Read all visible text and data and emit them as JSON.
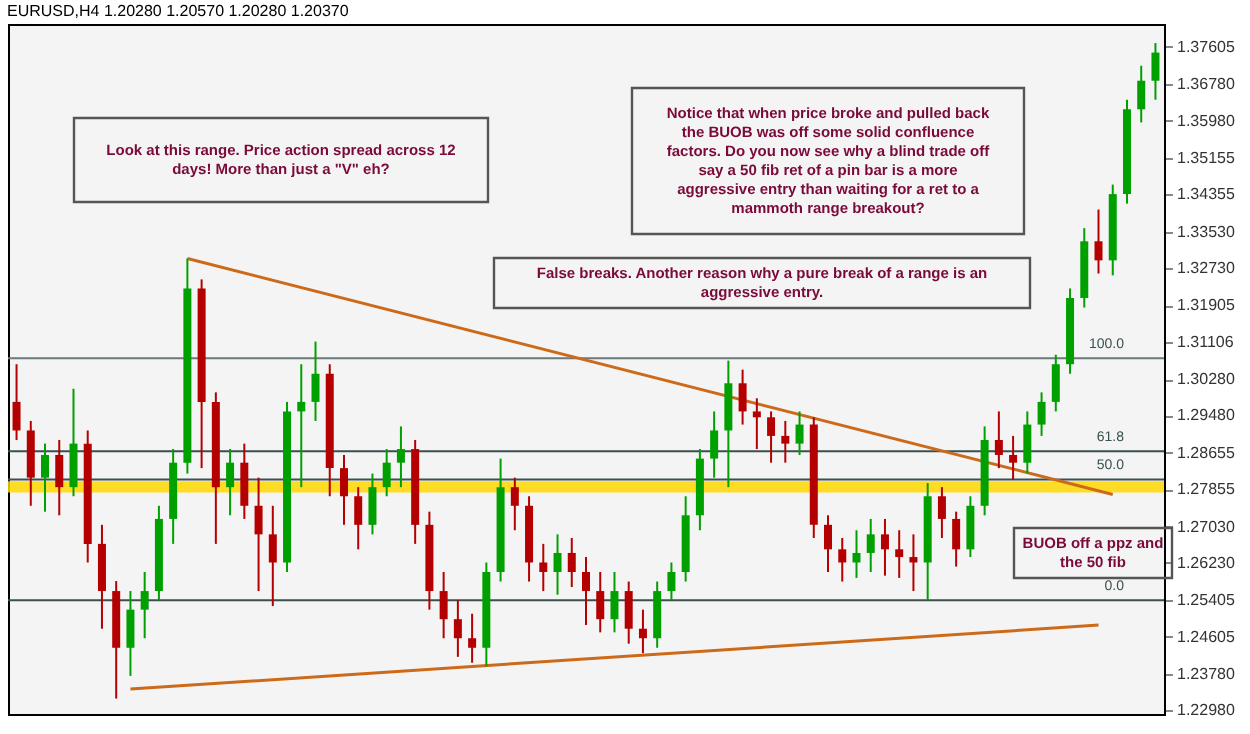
{
  "chart_data": {
    "type": "candlestick",
    "title": "EURUSD,H4  1.20280 1.20570 1.20280 1.20370",
    "categories": [
      null,
      null,
      null,
      null,
      null,
      null,
      null,
      null,
      null,
      null,
      null,
      null,
      null,
      null,
      null,
      null,
      null,
      null,
      null,
      null,
      null,
      null,
      null,
      null,
      null,
      null,
      null,
      null,
      null,
      null,
      null,
      null,
      null,
      null,
      null,
      null,
      null,
      null,
      null,
      null,
      null,
      null,
      null,
      null,
      null,
      null,
      null,
      null,
      null,
      null,
      null,
      null,
      null,
      null,
      null,
      null,
      null,
      null,
      null,
      null,
      null,
      null,
      null,
      null,
      null,
      null,
      null,
      null,
      null,
      null,
      null,
      null,
      null,
      null,
      null,
      null,
      null,
      null,
      null,
      null,
      null
    ],
    "ohlc": [
      [
        1.2978,
        1.3061,
        1.2894,
        1.2915
      ],
      [
        1.2915,
        1.2936,
        1.2749,
        1.2811
      ],
      [
        1.2811,
        1.2886,
        1.2736,
        1.2861
      ],
      [
        1.2861,
        1.2894,
        1.2728,
        1.279
      ],
      [
        1.279,
        1.3007,
        1.277,
        1.2886
      ],
      [
        1.2886,
        1.2915,
        1.2624,
        1.2665
      ],
      [
        1.2665,
        1.2707,
        1.2478,
        1.2561
      ],
      [
        1.2561,
        1.2583,
        1.2324,
        1.2436
      ],
      [
        1.2436,
        1.2561,
        1.2374,
        1.252
      ],
      [
        1.252,
        1.2603,
        1.2457,
        1.2561
      ],
      [
        1.2561,
        1.2749,
        1.2541,
        1.272
      ],
      [
        1.272,
        1.2874,
        1.2665,
        1.2844
      ],
      [
        1.2844,
        1.3294,
        1.282,
        1.3228
      ],
      [
        1.3228,
        1.3248,
        1.2832,
        1.2978
      ],
      [
        1.2978,
        1.2999,
        1.2665,
        1.279
      ],
      [
        1.279,
        1.2874,
        1.2728,
        1.2844
      ],
      [
        1.2844,
        1.2886,
        1.272,
        1.2749
      ],
      [
        1.2749,
        1.2811,
        1.2561,
        1.2686
      ],
      [
        1.2686,
        1.2749,
        1.2528,
        1.2624
      ],
      [
        1.2624,
        1.2978,
        1.2603,
        1.2957
      ],
      [
        1.2957,
        1.3061,
        1.279,
        1.2978
      ],
      [
        1.2978,
        1.3111,
        1.2936,
        1.304
      ],
      [
        1.304,
        1.3061,
        1.277,
        1.2832
      ],
      [
        1.2832,
        1.2861,
        1.2707,
        1.277
      ],
      [
        1.277,
        1.279,
        1.2653,
        1.2707
      ],
      [
        1.2707,
        1.282,
        1.2686,
        1.279
      ],
      [
        1.279,
        1.2874,
        1.277,
        1.2844
      ],
      [
        1.2844,
        1.2924,
        1.279,
        1.2874
      ],
      [
        1.2874,
        1.2894,
        1.2665,
        1.2707
      ],
      [
        1.2707,
        1.2736,
        1.252,
        1.2561
      ],
      [
        1.2561,
        1.2603,
        1.2457,
        1.2499
      ],
      [
        1.2499,
        1.2541,
        1.2416,
        1.2457
      ],
      [
        1.2457,
        1.2511,
        1.2403,
        1.2436
      ],
      [
        1.2436,
        1.2624,
        1.2395,
        1.2603
      ],
      [
        1.2603,
        1.2853,
        1.2582,
        1.279
      ],
      [
        1.279,
        1.2811,
        1.2695,
        1.2749
      ],
      [
        1.2749,
        1.277,
        1.2582,
        1.2624
      ],
      [
        1.2624,
        1.2665,
        1.2561,
        1.2603
      ],
      [
        1.2603,
        1.2686,
        1.2553,
        1.2645
      ],
      [
        1.2645,
        1.2678,
        1.257,
        1.2603
      ],
      [
        1.2603,
        1.2636,
        1.2486,
        1.2561
      ],
      [
        1.2561,
        1.2603,
        1.247,
        1.2499
      ],
      [
        1.2499,
        1.2603,
        1.247,
        1.2561
      ],
      [
        1.2561,
        1.2582,
        1.2445,
        1.2478
      ],
      [
        1.2478,
        1.252,
        1.2424,
        1.2457
      ],
      [
        1.2457,
        1.2582,
        1.2436,
        1.2561
      ],
      [
        1.2561,
        1.2624,
        1.2541,
        1.2603
      ],
      [
        1.2603,
        1.277,
        1.2582,
        1.2728
      ],
      [
        1.2728,
        1.2874,
        1.2695,
        1.2853
      ],
      [
        1.2853,
        1.2957,
        1.2811,
        1.2915
      ],
      [
        1.2915,
        1.3069,
        1.279,
        1.3019
      ],
      [
        1.3019,
        1.3049,
        1.2928,
        1.2957
      ],
      [
        1.2957,
        1.2986,
        1.2874,
        1.2944
      ],
      [
        1.2944,
        1.2957,
        1.2844,
        1.2903
      ],
      [
        1.2903,
        1.2936,
        1.2844,
        1.2886
      ],
      [
        1.2886,
        1.2957,
        1.2861,
        1.2928
      ],
      [
        1.2928,
        1.2944,
        1.2678,
        1.2707
      ],
      [
        1.2707,
        1.2728,
        1.2603,
        1.2653
      ],
      [
        1.2653,
        1.2678,
        1.2582,
        1.2624
      ],
      [
        1.2624,
        1.2695,
        1.259,
        1.2645
      ],
      [
        1.2645,
        1.272,
        1.2603,
        1.2686
      ],
      [
        1.2686,
        1.272,
        1.2595,
        1.2653
      ],
      [
        1.2653,
        1.2695,
        1.259,
        1.2636
      ],
      [
        1.2636,
        1.2686,
        1.2561,
        1.2624
      ],
      [
        1.2624,
        1.2799,
        1.2541,
        1.277
      ],
      [
        1.277,
        1.279,
        1.2678,
        1.272
      ],
      [
        1.272,
        1.2736,
        1.2615,
        1.2653
      ],
      [
        1.2653,
        1.277,
        1.2636,
        1.2749
      ],
      [
        1.2749,
        1.2924,
        1.2728,
        1.2894
      ],
      [
        1.2894,
        1.2957,
        1.2832,
        1.2861
      ],
      [
        1.2861,
        1.2903,
        1.2807,
        1.2844
      ],
      [
        1.2844,
        1.2957,
        1.282,
        1.2928
      ],
      [
        1.2928,
        1.2999,
        1.2903,
        1.2978
      ],
      [
        1.2978,
        1.3082,
        1.2957,
        1.3061
      ],
      [
        1.3061,
        1.3228,
        1.304,
        1.3207
      ],
      [
        1.3207,
        1.3361,
        1.3186,
        1.3332
      ],
      [
        1.3332,
        1.3402,
        1.3261,
        1.329
      ],
      [
        1.329,
        1.3457,
        1.3257,
        1.3436
      ],
      [
        1.3436,
        1.3644,
        1.3415,
        1.3623
      ],
      [
        1.3623,
        1.3719,
        1.3594,
        1.3686
      ],
      [
        1.3686,
        1.3769,
        1.3644,
        1.3748
      ]
    ],
    "colors": [
      "#b40000",
      "#b40000",
      "#00a000",
      "#b40000",
      "#00a000",
      "#b40000",
      "#b40000",
      "#b40000",
      "#00a000",
      "#00a000",
      "#00a000",
      "#00a000",
      "#00a000",
      "#b40000",
      "#b40000",
      "#00a000",
      "#b40000",
      "#b40000",
      "#b40000",
      "#00a000",
      "#00a000",
      "#00a000",
      "#b40000",
      "#b40000",
      "#b40000",
      "#00a000",
      "#00a000",
      "#00a000",
      "#b40000",
      "#b40000",
      "#b40000",
      "#b40000",
      "#b40000",
      "#00a000",
      "#00a000",
      "#b40000",
      "#b40000",
      "#b40000",
      "#00a000",
      "#b40000",
      "#b40000",
      "#b40000",
      "#00a000",
      "#b40000",
      "#b40000",
      "#00a000",
      "#00a000",
      "#00a000",
      "#00a000",
      "#00a000",
      "#00a000",
      "#b40000",
      "#b40000",
      "#b40000",
      "#b40000",
      "#00a000",
      "#b40000",
      "#b40000",
      "#b40000",
      "#00a000",
      "#00a000",
      "#b40000",
      "#b40000",
      "#b40000",
      "#00a000",
      "#b40000",
      "#b40000",
      "#00a000",
      "#00a000",
      "#b40000",
      "#b40000",
      "#00a000",
      "#00a000",
      "#00a000",
      "#00a000",
      "#00a000",
      "#b40000",
      "#00a000",
      "#00a000",
      "#00a000",
      "#00a000"
    ],
    "series": [
      {
        "type": "line",
        "color": "#cc6a1a",
        "values": [
          null,
          null,
          null,
          null,
          null,
          null,
          null,
          null,
          null,
          null,
          null,
          null,
          1.3294,
          null,
          null,
          null,
          null,
          null,
          null,
          null,
          null,
          null,
          null,
          null,
          null,
          null,
          null,
          null,
          null,
          null,
          null,
          null,
          null,
          null,
          null,
          null,
          null,
          null,
          null,
          null,
          null,
          null,
          null,
          null,
          null,
          null,
          null,
          null,
          null,
          null,
          null,
          null,
          null,
          null,
          null,
          null,
          null,
          null,
          null,
          null,
          null,
          null,
          null,
          null,
          null,
          null,
          null,
          null,
          null,
          null,
          null,
          null,
          null,
          null,
          null,
          null,
          null,
          1.2774,
          null,
          null,
          null
        ]
      },
      {
        "type": "line",
        "color": "#cc6a1a",
        "values": [
          null,
          null,
          null,
          null,
          null,
          null,
          null,
          null,
          1.2345,
          null,
          null,
          null,
          null,
          null,
          null,
          null,
          null,
          null,
          null,
          null,
          null,
          null,
          null,
          null,
          null,
          null,
          null,
          null,
          null,
          null,
          null,
          null,
          null,
          null,
          null,
          null,
          null,
          null,
          null,
          null,
          null,
          null,
          null,
          null,
          null,
          null,
          null,
          null,
          null,
          null,
          null,
          null,
          null,
          null,
          null,
          null,
          null,
          null,
          null,
          null,
          null,
          null,
          null,
          null,
          null,
          null,
          null,
          null,
          null,
          null,
          null,
          null,
          null,
          null,
          null,
          null,
          1.2486,
          null,
          null,
          null,
          null
        ]
      }
    ],
    "ylim": [
      1.229,
      1.3811
    ],
    "yticks": [
      1.37605,
      {
        "value": 1.3678,
        "label": "1.36780"
      },
      {
        "value": 1.3598,
        "label": "1.35980"
      },
      1.35155,
      1.34355,
      {
        "value": 1.3353,
        "label": "1.33530"
      },
      {
        "value": 1.3273,
        "label": "1.32730"
      },
      1.31905,
      1.31106,
      {
        "value": 1.3028,
        "label": "1.30280"
      },
      {
        "value": 1.2948,
        "label": "1.29480"
      },
      1.28655,
      1.27855,
      {
        "value": 1.2703,
        "label": "1.27030"
      },
      {
        "value": 1.2623,
        "label": "1.26230"
      },
      1.25405,
      1.24605,
      {
        "value": 1.2378,
        "label": "1.23780"
      },
      {
        "value": 1.2298,
        "label": "1.22980"
      }
    ],
    "tick_labels": "y",
    "grid": false,
    "ref_lines": [
      {
        "axis": "y",
        "value": 1.3074,
        "color": "#6a7a7a"
      },
      {
        "axis": "y",
        "value": 1.2869,
        "color": "#3a5050"
      },
      {
        "axis": "y",
        "value": 1.2807,
        "color": "#3a5050"
      },
      {
        "axis": "y",
        "value": 1.2541,
        "color": "#3a5050"
      }
    ],
    "bands": [
      {
        "axis": "y",
        "from": 1.2778,
        "to": 1.2803,
        "label": null,
        "color": "#ffd700"
      }
    ],
    "annotations": [
      "Look at this range. Price action spread across 12 days! More than just a \"V\" eh?",
      "Notice that when price broke and pulled back the BUOB was off some solid confluence factors. Do you now see why a blind trade off say a 50 fib ret of a pin bar is a more aggressive entry than waiting for a ret to a mammoth range breakout?",
      "False breaks. Another reason why a pure break of a range is an aggressive entry.",
      "BUOB off a ppz and the 50 fib",
      {
        "text": "100.0",
        "y": 1.3074
      },
      {
        "text": "61.8",
        "y": 1.2869
      },
      {
        "text": "50.0",
        "y": 1.2807
      },
      {
        "text": "0.0",
        "y": 1.2541
      }
    ]
  }
}
